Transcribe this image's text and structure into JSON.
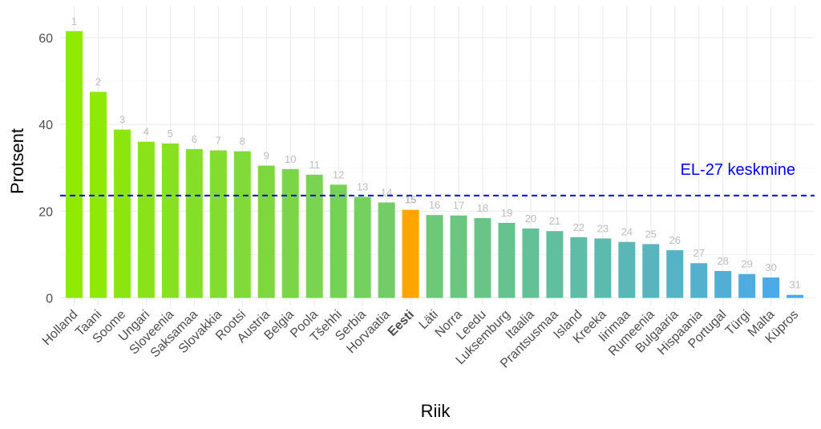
{
  "chart_data": {
    "type": "bar",
    "xlabel": "Riik",
    "ylabel": "Protsent",
    "ylim": [
      0,
      66
    ],
    "yticks": [
      0,
      20,
      40,
      60
    ],
    "grid": true,
    "categories": [
      "Holland",
      "Taani",
      "Soome",
      "Ungari",
      "Sloveenia",
      "Saksamaa",
      "Slovakkia",
      "Rootsi",
      "Austria",
      "Belgia",
      "Poola",
      "Tšehhi",
      "Serbia",
      "Horvaatia",
      "Eesti",
      "Läti",
      "Norra",
      "Leedu",
      "Luksemburg",
      "Itaalia",
      "Prantsusmaa",
      "Island",
      "Kreeka",
      "Iirimaa",
      "Rumeenia",
      "Bulgaaria",
      "Hispaania",
      "Portugal",
      "Türgi",
      "Malta",
      "Küpros"
    ],
    "values": [
      61.5,
      47.5,
      38.8,
      36.0,
      35.6,
      34.3,
      34.0,
      33.8,
      30.5,
      29.7,
      28.4,
      26.1,
      23.3,
      22.0,
      20.3,
      19.1,
      19.0,
      18.4,
      17.3,
      16.0,
      15.4,
      14.0,
      13.7,
      12.9,
      12.4,
      11.0,
      8.0,
      6.2,
      5.5,
      4.7,
      0.7
    ],
    "ranks": [
      "1",
      "2",
      "3",
      "4",
      "5",
      "6",
      "7",
      "8",
      "9",
      "10",
      "11",
      "12",
      "13",
      "14",
      "15",
      "16",
      "17",
      "18",
      "19",
      "20",
      "21",
      "22",
      "23",
      "24",
      "25",
      "26",
      "27",
      "28",
      "29",
      "30",
      "31"
    ],
    "highlight": "Eesti",
    "highlight_color": "#ffa500",
    "gradient_start_color": "#90ea00",
    "gradient_end_color": "#4aa8ee",
    "reference_line": {
      "value": 23.6,
      "label": "EL-27 keskmine",
      "color": "#0000ff",
      "style": "dashed"
    }
  }
}
